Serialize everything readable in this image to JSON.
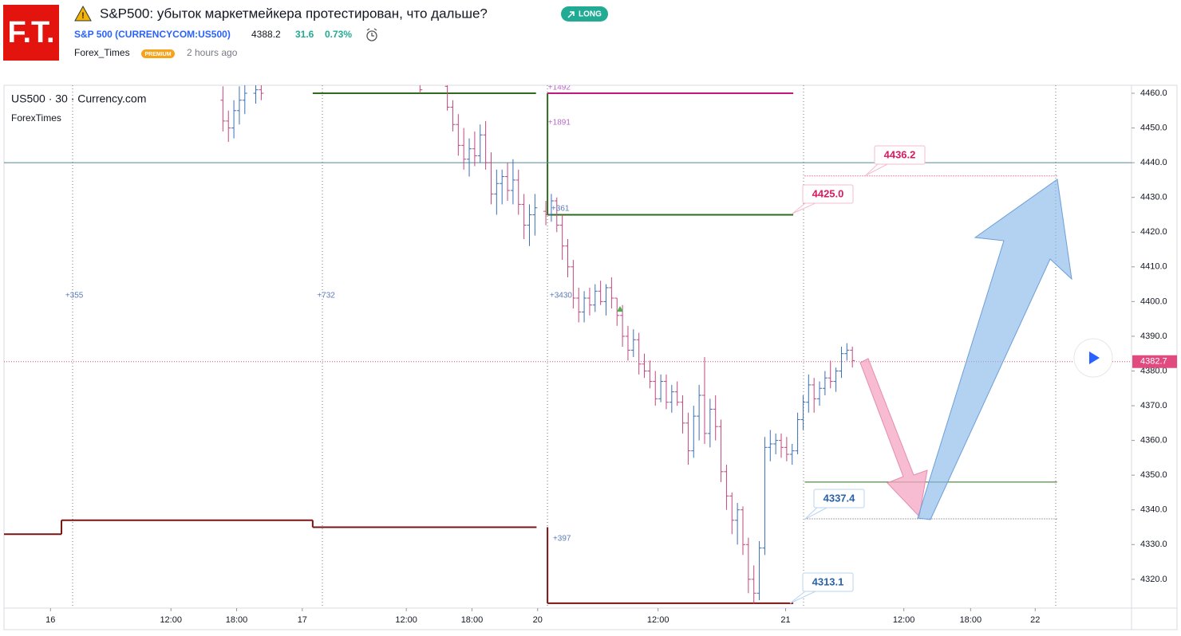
{
  "header": {
    "logo": "F.T.",
    "title": "S&P500: убыток маркетмейкера протестирован, что дальше?",
    "badge": "LONG",
    "symbol": "S&P 500 (CURRENCYCOM:US500)",
    "price": "4388.2",
    "change": "31.6",
    "change_pct": "0.73%",
    "author": "Forex_Times",
    "author_badge": "PREMIUM",
    "time": "2 hours ago"
  },
  "chart_data": {
    "type": "ohlc",
    "title": "US500 · 30 · Currency.com",
    "subtitle": "ForexTimes",
    "x": [
      40,
      41,
      42,
      43,
      44,
      46,
      47,
      76,
      81,
      82,
      83,
      84,
      85,
      86,
      87,
      88,
      89,
      90,
      91,
      92,
      93,
      94,
      95,
      96,
      97,
      99,
      100,
      101,
      102,
      103,
      104,
      105,
      106,
      107,
      108,
      109,
      110,
      111,
      112,
      113,
      114,
      115,
      116,
      117,
      118,
      119,
      120,
      121,
      122,
      123,
      124,
      125,
      126,
      127,
      128,
      129,
      130,
      131,
      132,
      133,
      134,
      135,
      136,
      137,
      138,
      139,
      140,
      141,
      142,
      143,
      144,
      145,
      146,
      147,
      148,
      149,
      150,
      151,
      152,
      153,
      154,
      155
    ],
    "open": [
      4458,
      4452,
      4450,
      4455,
      4458,
      4460,
      4461,
      4463,
      4462,
      4456,
      4451,
      4445,
      4441,
      4444,
      4442,
      4448,
      4440,
      4431,
      4434,
      4436,
      4432,
      4435,
      4428,
      4422,
      4425,
      4426,
      4425,
      4429,
      4422,
      4416,
      4410,
      4401,
      4397,
      4401,
      4399,
      4403,
      4400,
      4404,
      4401,
      4396,
      4390,
      4386,
      4389,
      4382,
      4380,
      4377,
      4372,
      4377,
      4371,
      4374,
      4371,
      4365,
      4357,
      4367,
      4373,
      4362,
      4369,
      4364,
      4351,
      4344,
      4337,
      4340,
      4330,
      4320,
      4316,
      4329,
      4358,
      4359,
      4360,
      4358,
      4356,
      4357,
      4366,
      4371,
      4376,
      4372,
      4375,
      4378,
      4377,
      4380,
      4385,
      4386
    ],
    "high": [
      4462,
      4455,
      4458,
      4462,
      4463,
      4463,
      4464,
      4465,
      4463,
      4458,
      4454,
      4450,
      4447,
      4449,
      4451,
      4452,
      4443,
      4438,
      4438,
      4440,
      4441,
      4438,
      4431,
      4428,
      4431,
      4429,
      4431,
      4430,
      4425,
      4418,
      4412,
      4404,
      4403,
      4404,
      4405,
      4406,
      4405,
      4407,
      4401,
      4399,
      4393,
      4392,
      4391,
      4385,
      4383,
      4380,
      4379,
      4379,
      4376,
      4377,
      4373,
      4368,
      4370,
      4376,
      4384,
      4372,
      4373,
      4366,
      4353,
      4345,
      4342,
      4341,
      4332,
      4324,
      4331,
      4361,
      4363,
      4362,
      4362,
      4361,
      4359,
      4368,
      4373,
      4379,
      4378,
      4377,
      4380,
      4383,
      4381,
      4387,
      4388,
      4387
    ],
    "low": [
      4449,
      4446,
      4447,
      4451,
      4454,
      4457,
      4458,
      4460,
      4455,
      4449,
      4442,
      4438,
      4436,
      4439,
      4440,
      4438,
      4428,
      4425,
      4428,
      4429,
      4428,
      4425,
      4418,
      4416,
      4419,
      4422,
      4423,
      4420,
      4412,
      4407,
      4398,
      4394,
      4394,
      4396,
      4397,
      4399,
      4396,
      4398,
      4393,
      4387,
      4383,
      4384,
      4379,
      4378,
      4375,
      4370,
      4371,
      4369,
      4368,
      4370,
      4362,
      4353,
      4355,
      4360,
      4359,
      4358,
      4360,
      4348,
      4340,
      4333,
      4330,
      4327,
      4316,
      4313,
      4314,
      4327,
      4354,
      4356,
      4355,
      4354,
      4353,
      4356,
      4363,
      4368,
      4368,
      4370,
      4373,
      4375,
      4374,
      4378,
      4383,
      4381
    ],
    "close": [
      4452,
      4450,
      4455,
      4458,
      4460,
      4461,
      4460,
      4461,
      4456,
      4451,
      4445,
      4441,
      4444,
      4442,
      4448,
      4440,
      4431,
      4434,
      4436,
      4432,
      4435,
      4428,
      4422,
      4425,
      4427,
      4425,
      4429,
      4422,
      4416,
      4410,
      4401,
      4397,
      4401,
      4399,
      4403,
      4400,
      4404,
      4401,
      4396,
      4390,
      4386,
      4389,
      4382,
      4380,
      4377,
      4372,
      4377,
      4371,
      4374,
      4371,
      4365,
      4357,
      4367,
      4373,
      4362,
      4369,
      4364,
      4351,
      4344,
      4337,
      4340,
      4330,
      4320,
      4316,
      4329,
      4358,
      4359,
      4360,
      4358,
      4356,
      4357,
      4366,
      4371,
      4376,
      4372,
      4375,
      4378,
      4377,
      4380,
      4385,
      4386,
      4383
    ],
    "up_color": "#3a6fb6",
    "down_color": "#c2477d",
    "xlim": [
      0,
      206
    ],
    "xticks": [
      {
        "value": 8.5,
        "label": "16"
      },
      {
        "value": 30.5,
        "label": "12:00"
      },
      {
        "value": 42.5,
        "label": "18:00"
      },
      {
        "value": 54.5,
        "label": "17"
      },
      {
        "value": 73.5,
        "label": "12:00"
      },
      {
        "value": 85.5,
        "label": "18:00"
      },
      {
        "value": 97.5,
        "label": "20"
      },
      {
        "value": 119.5,
        "label": "12:00"
      },
      {
        "value": 142.8,
        "label": "21"
      },
      {
        "value": 164.4,
        "label": "12:00"
      },
      {
        "value": 176.6,
        "label": "18:00"
      },
      {
        "value": 188.4,
        "label": "22"
      }
    ],
    "ylim": [
      4311.7,
      4462.3
    ],
    "yticks": [
      {
        "value": 4460,
        "label": "4460.0"
      },
      {
        "value": 4450,
        "label": "4450.0"
      },
      {
        "value": 4440,
        "label": "4440.0"
      },
      {
        "value": 4430,
        "label": "4430.0"
      },
      {
        "value": 4420,
        "label": "4420.0"
      },
      {
        "value": 4410,
        "label": "4410.0"
      },
      {
        "value": 4400,
        "label": "4400.0"
      },
      {
        "value": 4390,
        "label": "4390.0"
      },
      {
        "value": 4380,
        "label": "4380.0"
      },
      {
        "value": 4370,
        "label": "4370.0"
      },
      {
        "value": 4360,
        "label": "4360.0"
      },
      {
        "value": 4350,
        "label": "4350.0"
      },
      {
        "value": 4340,
        "label": "4340.0"
      },
      {
        "value": 4330,
        "label": "4330.0"
      },
      {
        "value": 4320,
        "label": "4320.0"
      }
    ],
    "last_price": {
      "value": 4382.7,
      "label": "4382.7",
      "color": "#e04a7f"
    },
    "levels": [
      {
        "value": 4436.2,
        "label": "4436.2",
        "color": "#d81b60"
      },
      {
        "value": 4425.0,
        "label": "4425.0",
        "color": "#d81b60"
      },
      {
        "value": 4337.4,
        "label": "4337.4",
        "color": "#2962a8"
      },
      {
        "value": 4313.1,
        "label": "4313.1",
        "color": "#2962a8"
      }
    ],
    "drawings": [
      {
        "x": [
          56.4,
          97.2
        ],
        "y": [
          4460,
          4460
        ],
        "color": "#2e6b1f",
        "style": "solid"
      },
      {
        "x": [
          99.3,
          99.3
        ],
        "y": [
          4460,
          4425
        ],
        "color": "#2e6b1f",
        "style": "solid"
      },
      {
        "x": [
          99.3,
          144.2
        ],
        "y": [
          4425,
          4425
        ],
        "color": "#2e6b1f",
        "style": "solid"
      },
      {
        "x": [
          99.3,
          144.2
        ],
        "y": [
          4460,
          4460
        ],
        "color": "#c2187a",
        "style": "solid"
      },
      {
        "x": [
          0,
          10.5
        ],
        "y": [
          4333,
          4333
        ],
        "color": "#7a1414",
        "style": "solid"
      },
      {
        "x": [
          10.5,
          10.5
        ],
        "y": [
          4333,
          4337
        ],
        "color": "#7a1414",
        "style": "solid"
      },
      {
        "x": [
          10.5,
          56.4
        ],
        "y": [
          4337,
          4337
        ],
        "color": "#7a1414",
        "style": "solid"
      },
      {
        "x": [
          56.4,
          56.4
        ],
        "y": [
          4337,
          4335
        ],
        "color": "#7a1414",
        "style": "solid"
      },
      {
        "x": [
          56.4,
          97.3
        ],
        "y": [
          4335,
          4335
        ],
        "color": "#7a1414",
        "style": "solid"
      },
      {
        "x": [
          99.3,
          99.3
        ],
        "y": [
          4335,
          4313.1
        ],
        "color": "#7a1414",
        "style": "solid"
      },
      {
        "x": [
          99.3,
          144.2
        ],
        "y": [
          4313.1,
          4313.1
        ],
        "color": "#7a1414",
        "style": "solid"
      },
      {
        "x": [
          0,
          206
        ],
        "y": [
          4440,
          4440
        ],
        "color": "#4f8a9a",
        "style": "thin"
      },
      {
        "x": [
          146.3,
          192.4
        ],
        "y": [
          4348,
          4348
        ],
        "color": "#2e6b1f",
        "style": "thin"
      },
      {
        "x": [
          146.3,
          192.4
        ],
        "y": [
          4436.2,
          4436.2
        ],
        "color": "#d81b60",
        "style": "dotted"
      },
      {
        "x": [
          146.3,
          192.4
        ],
        "y": [
          4337.4,
          4337.4
        ],
        "color": "#555555",
        "style": "dotted"
      }
    ],
    "annotations": [
      {
        "text": "+355",
        "x": 11.2,
        "y": 4401.7
      },
      {
        "text": "+732",
        "x": 57.2,
        "y": 4401.7
      },
      {
        "text": "+3430",
        "x": 99.7,
        "y": 4401.7
      },
      {
        "text": "+1492",
        "x": 99.4,
        "y": 4461.6
      },
      {
        "text": "+1891",
        "x": 99.4,
        "y": 4451.5
      },
      {
        "text": "+361",
        "x": 100,
        "y": 4426.7
      },
      {
        "text": "+397",
        "x": 100.3,
        "y": 4331.7
      }
    ]
  }
}
